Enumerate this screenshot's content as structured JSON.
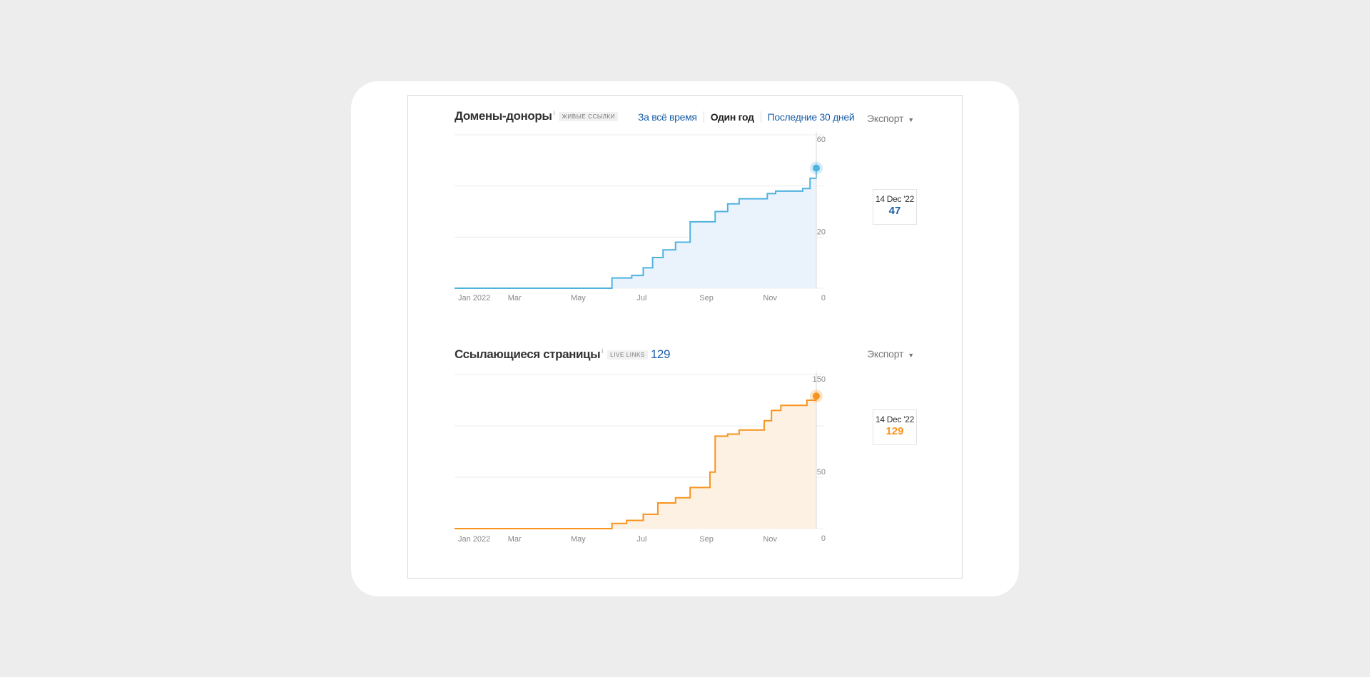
{
  "donors": {
    "title": "Домены-доноры",
    "info_icon": "info-icon",
    "badge": "живые ссылки",
    "tabs": [
      {
        "label": "За всё время",
        "active": false
      },
      {
        "label": "Один год",
        "active": true
      },
      {
        "label": "Последние 30 дней",
        "active": false
      }
    ],
    "export_label": "Экспорт",
    "tooltip": {
      "date": "14 Dec '22",
      "value": "47"
    }
  },
  "pages": {
    "title": "Ссылающиеся страницы",
    "info_icon": "info-icon",
    "badge": "live links",
    "count": "129",
    "export_label": "Экспорт",
    "tooltip": {
      "date": "14 Dec '22",
      "value": "129"
    }
  },
  "chart_data": [
    {
      "type": "area",
      "color": "#4fb3e0",
      "fill": "#eaf3fb",
      "x": [
        "2022-01-01",
        "2022-05-20",
        "2022-06-01",
        "2022-06-10",
        "2022-06-20",
        "2022-07-01",
        "2022-07-10",
        "2022-07-20",
        "2022-08-01",
        "2022-08-15",
        "2022-08-25",
        "2022-09-01",
        "2022-09-08",
        "2022-09-20",
        "2022-10-01",
        "2022-10-15",
        "2022-10-28",
        "2022-11-05",
        "2022-11-20",
        "2022-12-01",
        "2022-12-08",
        "2022-12-14"
      ],
      "y": [
        0,
        0,
        4,
        4,
        5,
        8,
        12,
        15,
        18,
        26,
        26,
        26,
        30,
        33,
        35,
        35,
        37,
        38,
        38,
        39,
        43,
        47
      ],
      "x_ticks": [
        "Jan 2022",
        "Mar",
        "May",
        "Jul",
        "Sep",
        "Nov"
      ],
      "y_ticks": [
        "60",
        "20",
        "0"
      ],
      "ylim": [
        0,
        60
      ],
      "grid": true
    },
    {
      "type": "area",
      "color": "#f7931e",
      "fill": "#fdf1e3",
      "x": [
        "2022-01-01",
        "2022-05-20",
        "2022-06-01",
        "2022-06-15",
        "2022-07-01",
        "2022-07-15",
        "2022-08-01",
        "2022-08-15",
        "2022-08-28",
        "2022-09-03",
        "2022-09-08",
        "2022-09-20",
        "2022-10-01",
        "2022-10-15",
        "2022-10-25",
        "2022-11-01",
        "2022-11-10",
        "2022-11-25",
        "2022-12-05",
        "2022-12-14"
      ],
      "y": [
        0,
        0,
        5,
        8,
        14,
        25,
        30,
        40,
        40,
        55,
        90,
        92,
        96,
        96,
        105,
        115,
        120,
        120,
        125,
        129
      ],
      "x_ticks": [
        "Jan 2022",
        "Mar",
        "May",
        "Jul",
        "Sep",
        "Nov"
      ],
      "y_ticks": [
        "150",
        "50",
        "0"
      ],
      "ylim": [
        0,
        150
      ],
      "grid": true
    }
  ]
}
